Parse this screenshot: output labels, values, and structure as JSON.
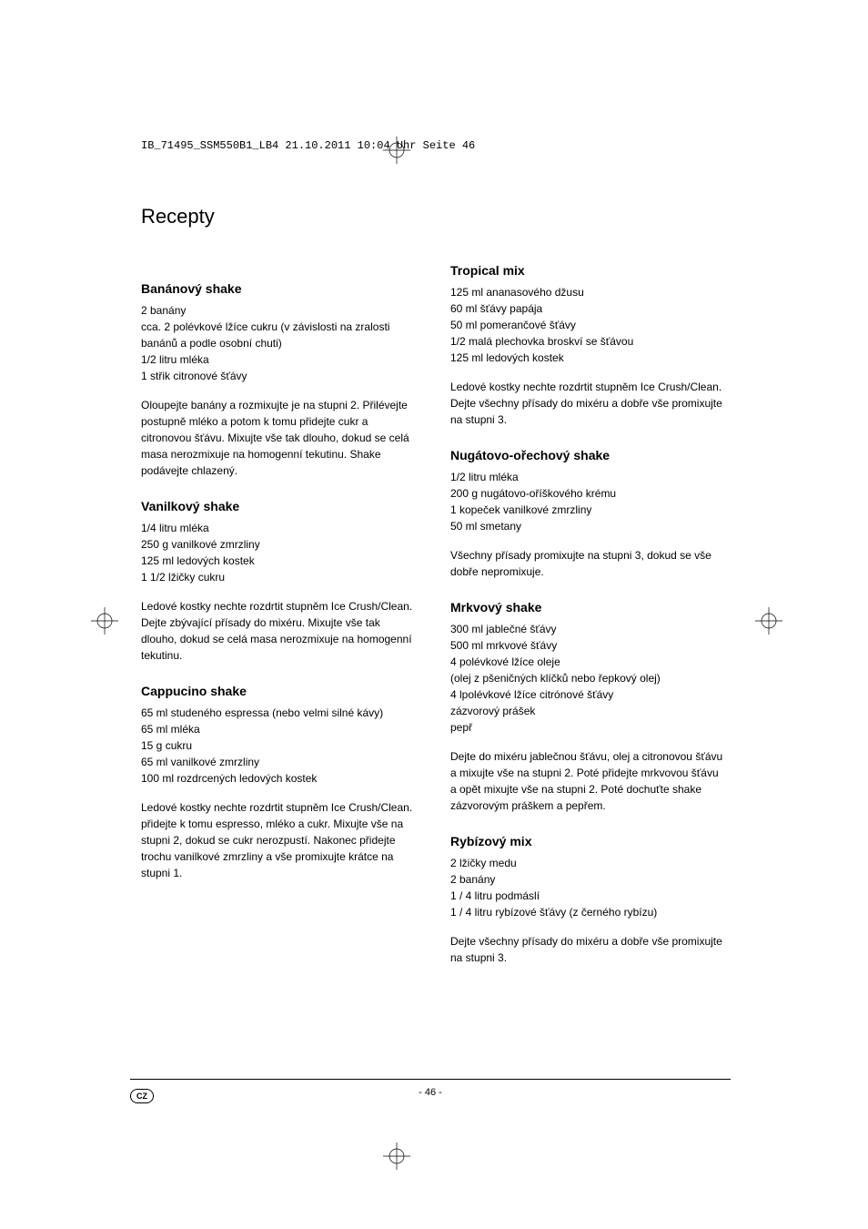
{
  "header": "IB_71495_SSM550B1_LB4  21.10.2011  10:04 Uhr  Seite 46",
  "main_title": "Recepty",
  "left": {
    "r1": {
      "title": "Banánový shake",
      "i": [
        "2 banány",
        "cca. 2 polévkové lžíce cukru (v závislosti na zralosti banánů a podle osobní chuti)",
        "1/2 litru mléka",
        "1 střik citronové šťávy"
      ],
      "p": "Oloupejte banány a rozmixujte je na stupni 2. Přilévejte postupně mléko a potom k tomu přidejte cukr a citronovou šťávu. Mixujte vše tak dlouho, dokud se celá masa nerozmixuje na homogenní tekutinu. Shake podávejte chlazený."
    },
    "r2": {
      "title": "Vanilkový shake",
      "i": [
        "1/4 litru mléka",
        "250 g vanilkové zmrzliny",
        "125 ml ledových kostek",
        "1 1/2 lžičky cukru"
      ],
      "p": "Ledové kostky nechte rozdrtit stupněm Ice Crush/Clean. Dejte zbývající přísady do mixéru. Mixujte vše tak dlouho, dokud se celá masa nerozmixuje na homogenní tekutinu."
    },
    "r3": {
      "title": "Cappucino shake",
      "i": [
        "65 ml studeného espressa (nebo velmi silné kávy)",
        "65 ml mléka",
        "15 g cukru",
        "65 ml vanilkové zmrzliny",
        "100 ml rozdrcených ledových kostek"
      ],
      "p": "Ledové kostky nechte rozdrtit stupněm Ice Crush/Clean. přidejte k tomu espresso, mléko a cukr. Mixujte vše na stupni 2, dokud se cukr nerozpustí. Nakonec přidejte trochu vanilkové zmrzliny a vše promixujte krátce na stupni 1."
    }
  },
  "right": {
    "r1": {
      "title": "Tropical mix",
      "i": [
        "125 ml ananasového džusu",
        "60 ml šťávy papája",
        "50 ml pomerančové šťávy",
        "1/2 malá plechovka broskví se šťávou",
        "125 ml ledových kostek"
      ],
      "p": "Ledové kostky nechte rozdrtit stupněm Ice Crush/Clean. Dejte všechny přísady do mixéru a dobře vše promixujte na stupni 3."
    },
    "r2": {
      "title": "Nugátovo-ořechový shake",
      "i": [
        "1/2 litru mléka",
        "200 g nugátovo-oříškového krému",
        "1 kopeček vanilkové zmrzliny",
        "50 ml smetany"
      ],
      "p": "Všechny přísady promixujte na stupni 3, dokud se vše dobře nepromixuje."
    },
    "r3": {
      "title": "Mrkvový shake",
      "i": [
        "300 ml jablečné šťávy",
        "500 ml mrkvové šťávy",
        "4 polévkové lžíce oleje",
        "(olej z pšeničných klíčků nebo řepkový olej)",
        "4 lpolévkové lžíce citrónové šťávy",
        "zázvorový prášek",
        "pepř"
      ],
      "p": "Dejte do mixéru jablečnou šťávu, olej a citronovou šťávu a mixujte vše na stupni 2. Poté přidejte mrkvovou šťávu a opět mixujte vše na stupni 2. Poté dochuťte shake zázvorovým práškem a pepřem."
    },
    "r4": {
      "title": "Rybízový mix",
      "i": [
        "2 lžičky medu",
        "2 banány",
        "1 / 4 litru podmáslí",
        "1 / 4 litru rybízové šťávy (z černého rybízu)"
      ],
      "p": "Dejte všechny přísady do mixéru a dobře vše promixujte na stupni 3."
    }
  },
  "footer": {
    "lang": "CZ",
    "page": "- 46 -"
  }
}
